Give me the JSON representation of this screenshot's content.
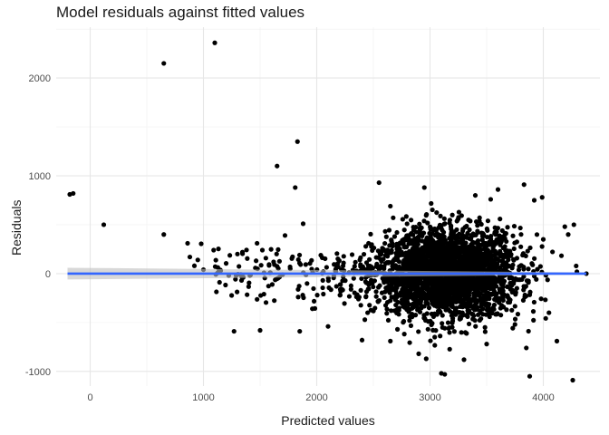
{
  "chart_data": {
    "type": "scatter",
    "title": "Model residuals against fitted values",
    "xlabel": "Predicted values",
    "ylabel": "Residuals",
    "xlim": [
      -300,
      4500
    ],
    "ylim": [
      -1150,
      2520
    ],
    "x_ticks": [
      0,
      1000,
      2000,
      3000,
      4000
    ],
    "y_ticks": [
      -1000,
      0,
      1000,
      2000
    ],
    "x_tick_labels": [
      "0",
      "1000",
      "2000",
      "3000",
      "4000"
    ],
    "y_tick_labels": [
      "-1000",
      "0",
      "1000",
      "2000"
    ],
    "grid": true,
    "point_color": "#000000",
    "smooth_line": {
      "color": "#3366ff",
      "band_color": "#bebebe",
      "x": [
        -200,
        4380
      ],
      "y": [
        0,
        0
      ],
      "band_halfwidth_start": 60,
      "band_halfwidth_end": 12
    },
    "outliers": [
      {
        "x": -180,
        "y": 810
      },
      {
        "x": -150,
        "y": 820
      },
      {
        "x": 120,
        "y": 500
      },
      {
        "x": 650,
        "y": 2150
      },
      {
        "x": 1100,
        "y": 2360
      },
      {
        "x": 650,
        "y": 400
      },
      {
        "x": 860,
        "y": 310
      },
      {
        "x": 980,
        "y": 305
      },
      {
        "x": 1090,
        "y": 240
      },
      {
        "x": 1300,
        "y": 200
      },
      {
        "x": 1650,
        "y": 1100
      },
      {
        "x": 1810,
        "y": 880
      },
      {
        "x": 1830,
        "y": 1350
      },
      {
        "x": 1520,
        "y": 240
      },
      {
        "x": 1720,
        "y": 390
      },
      {
        "x": 1880,
        "y": 510
      },
      {
        "x": 1270,
        "y": -590
      },
      {
        "x": 1500,
        "y": -580
      },
      {
        "x": 1850,
        "y": -590
      },
      {
        "x": 880,
        "y": 170
      },
      {
        "x": 950,
        "y": 140
      },
      {
        "x": 920,
        "y": 80
      },
      {
        "x": 1000,
        "y": 40
      },
      {
        "x": 2550,
        "y": 930
      },
      {
        "x": 2950,
        "y": 880
      },
      {
        "x": 3830,
        "y": 910
      },
      {
        "x": 3920,
        "y": 750
      },
      {
        "x": 3990,
        "y": 780
      },
      {
        "x": 4190,
        "y": 480
      },
      {
        "x": 4270,
        "y": 500
      },
      {
        "x": 4220,
        "y": 400
      },
      {
        "x": 4380,
        "y": 0
      },
      {
        "x": 4000,
        "y": 350
      },
      {
        "x": 3100,
        "y": -1020
      },
      {
        "x": 3130,
        "y": -1030
      },
      {
        "x": 3300,
        "y": -880
      },
      {
        "x": 3880,
        "y": -1050
      },
      {
        "x": 4260,
        "y": -1090
      },
      {
        "x": 4120,
        "y": -690
      },
      {
        "x": 3500,
        "y": -720
      },
      {
        "x": 2900,
        "y": -820
      },
      {
        "x": 2650,
        "y": -690
      },
      {
        "x": 2400,
        "y": -680
      },
      {
        "x": 3850,
        "y": -760
      },
      {
        "x": 4050,
        "y": -400
      },
      {
        "x": 2100,
        "y": -540
      },
      {
        "x": 2650,
        "y": 690
      },
      {
        "x": 3400,
        "y": 800
      },
      {
        "x": 3600,
        "y": 860
      },
      {
        "x": 3750,
        "y": -520
      }
    ],
    "cluster": {
      "n": 2600,
      "center_x": 3150,
      "sd_x": 320,
      "center_y": 0,
      "sd_y": 230,
      "x_range": [
        2000,
        4300
      ]
    },
    "sparse_points": {
      "n": 140,
      "x_range": [
        1100,
        2400
      ],
      "y_sd": 150
    }
  }
}
